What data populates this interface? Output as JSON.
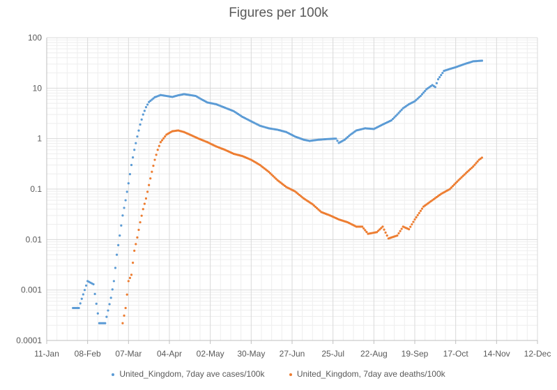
{
  "chart_data": {
    "type": "scatter",
    "title": "Figures per 100k",
    "xlabel": "",
    "ylabel": "",
    "yscale": "log",
    "ylim": [
      0.0001,
      100
    ],
    "y_tick_labels": [
      "0.0001",
      "0.001",
      "0.01",
      "0.1",
      "1",
      "10",
      "100"
    ],
    "y_tick_values": [
      0.0001,
      0.001,
      0.01,
      0.1,
      1,
      10,
      100
    ],
    "xlim_day": [
      0,
      336
    ],
    "x_tick_labels": [
      "11-Jan",
      "08-Feb",
      "07-Mar",
      "04-Apr",
      "02-May",
      "30-May",
      "27-Jun",
      "25-Jul",
      "22-Aug",
      "19-Sep",
      "17-Oct",
      "14-Nov",
      "12-Dec"
    ],
    "x_tick_days": [
      0,
      28,
      56,
      84,
      112,
      140,
      168,
      196,
      224,
      252,
      280,
      308,
      336
    ],
    "x_unit": "days since 11-Jan",
    "grid": true,
    "legend_position": "bottom",
    "series": [
      {
        "name": "United_Kingdom, 7day ave cases/100k",
        "color": "#5B9BD5",
        "anchors": [
          [
            18,
            0.00044
          ],
          [
            22,
            0.00044
          ],
          [
            24,
            0.00067
          ],
          [
            26,
            0.001
          ],
          [
            28,
            0.0015
          ],
          [
            32,
            0.0013
          ],
          [
            36,
            0.00022
          ],
          [
            40,
            0.00022
          ],
          [
            44,
            0.0007
          ],
          [
            46,
            0.0015
          ],
          [
            48,
            0.005
          ],
          [
            50,
            0.012
          ],
          [
            52,
            0.03
          ],
          [
            54,
            0.06
          ],
          [
            56,
            0.13
          ],
          [
            58,
            0.3
          ],
          [
            60,
            0.6
          ],
          [
            62,
            1.1
          ],
          [
            64,
            1.9
          ],
          [
            66,
            3.0
          ],
          [
            68,
            4.2
          ],
          [
            70,
            5.3
          ],
          [
            74,
            6.6
          ],
          [
            78,
            7.3
          ],
          [
            82,
            7.0
          ],
          [
            86,
            6.7
          ],
          [
            90,
            7.2
          ],
          [
            94,
            7.6
          ],
          [
            98,
            7.3
          ],
          [
            102,
            7.0
          ],
          [
            106,
            6.0
          ],
          [
            110,
            5.2
          ],
          [
            116,
            4.8
          ],
          [
            122,
            4.1
          ],
          [
            128,
            3.5
          ],
          [
            134,
            2.7
          ],
          [
            140,
            2.2
          ],
          [
            146,
            1.8
          ],
          [
            152,
            1.6
          ],
          [
            158,
            1.5
          ],
          [
            164,
            1.35
          ],
          [
            170,
            1.1
          ],
          [
            176,
            0.95
          ],
          [
            180,
            0.9
          ],
          [
            186,
            0.95
          ],
          [
            192,
            0.98
          ],
          [
            198,
            1.0
          ],
          [
            200,
            0.82
          ],
          [
            204,
            0.95
          ],
          [
            208,
            1.2
          ],
          [
            212,
            1.45
          ],
          [
            218,
            1.6
          ],
          [
            224,
            1.55
          ],
          [
            230,
            1.9
          ],
          [
            236,
            2.3
          ],
          [
            240,
            3.0
          ],
          [
            244,
            4.0
          ],
          [
            248,
            4.8
          ],
          [
            252,
            5.5
          ],
          [
            256,
            7.0
          ],
          [
            260,
            9.5
          ],
          [
            264,
            11.5
          ],
          [
            266,
            10.5
          ],
          [
            268,
            15
          ],
          [
            272,
            22
          ],
          [
            276,
            24
          ],
          [
            280,
            26
          ],
          [
            286,
            30
          ],
          [
            292,
            34
          ],
          [
            298,
            35
          ]
        ]
      },
      {
        "name": "United_Kingdom, 7day ave deaths/100k",
        "color": "#ED7D31",
        "anchors": [
          [
            52,
            0.00022
          ],
          [
            54,
            0.00044
          ],
          [
            56,
            0.0015
          ],
          [
            58,
            0.002
          ],
          [
            60,
            0.006
          ],
          [
            62,
            0.011
          ],
          [
            64,
            0.022
          ],
          [
            66,
            0.04
          ],
          [
            68,
            0.065
          ],
          [
            70,
            0.12
          ],
          [
            72,
            0.22
          ],
          [
            74,
            0.38
          ],
          [
            76,
            0.6
          ],
          [
            78,
            0.85
          ],
          [
            82,
            1.2
          ],
          [
            86,
            1.4
          ],
          [
            90,
            1.45
          ],
          [
            94,
            1.35
          ],
          [
            98,
            1.2
          ],
          [
            104,
            1.0
          ],
          [
            110,
            0.85
          ],
          [
            116,
            0.7
          ],
          [
            122,
            0.6
          ],
          [
            128,
            0.5
          ],
          [
            134,
            0.45
          ],
          [
            140,
            0.38
          ],
          [
            146,
            0.3
          ],
          [
            152,
            0.22
          ],
          [
            158,
            0.15
          ],
          [
            164,
            0.11
          ],
          [
            170,
            0.09
          ],
          [
            176,
            0.065
          ],
          [
            182,
            0.05
          ],
          [
            188,
            0.035
          ],
          [
            194,
            0.03
          ],
          [
            200,
            0.025
          ],
          [
            206,
            0.022
          ],
          [
            212,
            0.018
          ],
          [
            216,
            0.018
          ],
          [
            220,
            0.013
          ],
          [
            226,
            0.014
          ],
          [
            230,
            0.018
          ],
          [
            234,
            0.0105
          ],
          [
            240,
            0.012
          ],
          [
            244,
            0.018
          ],
          [
            248,
            0.016
          ],
          [
            252,
            0.025
          ],
          [
            258,
            0.045
          ],
          [
            264,
            0.06
          ],
          [
            270,
            0.08
          ],
          [
            276,
            0.1
          ],
          [
            282,
            0.15
          ],
          [
            288,
            0.22
          ],
          [
            292,
            0.28
          ],
          [
            296,
            0.38
          ],
          [
            298,
            0.42
          ]
        ]
      }
    ]
  }
}
